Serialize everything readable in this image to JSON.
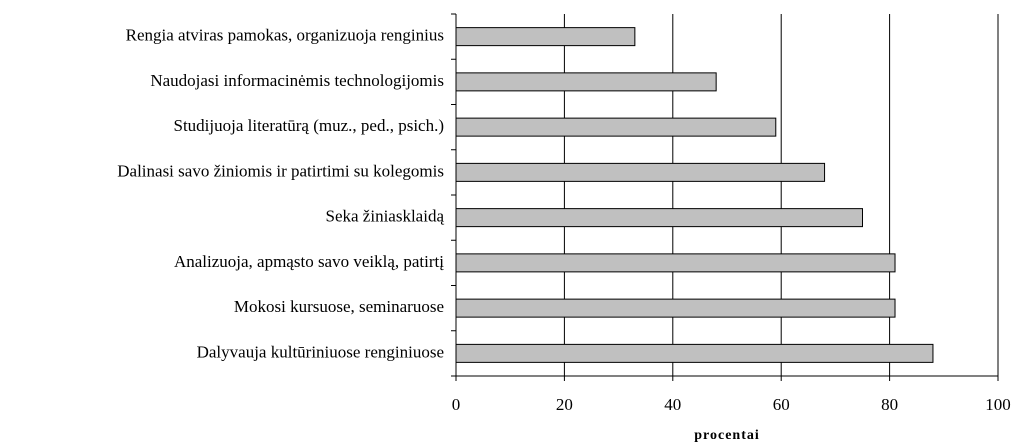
{
  "chart_data": {
    "type": "hbar",
    "categories": [
      "Rengia atviras pamokas, organizuoja renginius",
      "Naudojasi informacinėmis technologijomis",
      "Studijuoja literatūrą (muz., ped., psich.)",
      "Dalinasi savo žiniomis ir patirtimi su kolegomis",
      "Seka žiniasklaidą",
      "Analizuoja, apmąsto savo veiklą, patirtį",
      "Mokosi kursuose, seminaruose",
      "Dalyvauja kultūriniuose renginiuose"
    ],
    "values": [
      33,
      48,
      59,
      68,
      75,
      81,
      81,
      88
    ],
    "color": "#c0c0c0",
    "xlabel": "procentai",
    "xlim": [
      0,
      100
    ],
    "xticks": [
      0,
      20,
      40,
      60,
      80,
      100
    ],
    "grid": true
  }
}
